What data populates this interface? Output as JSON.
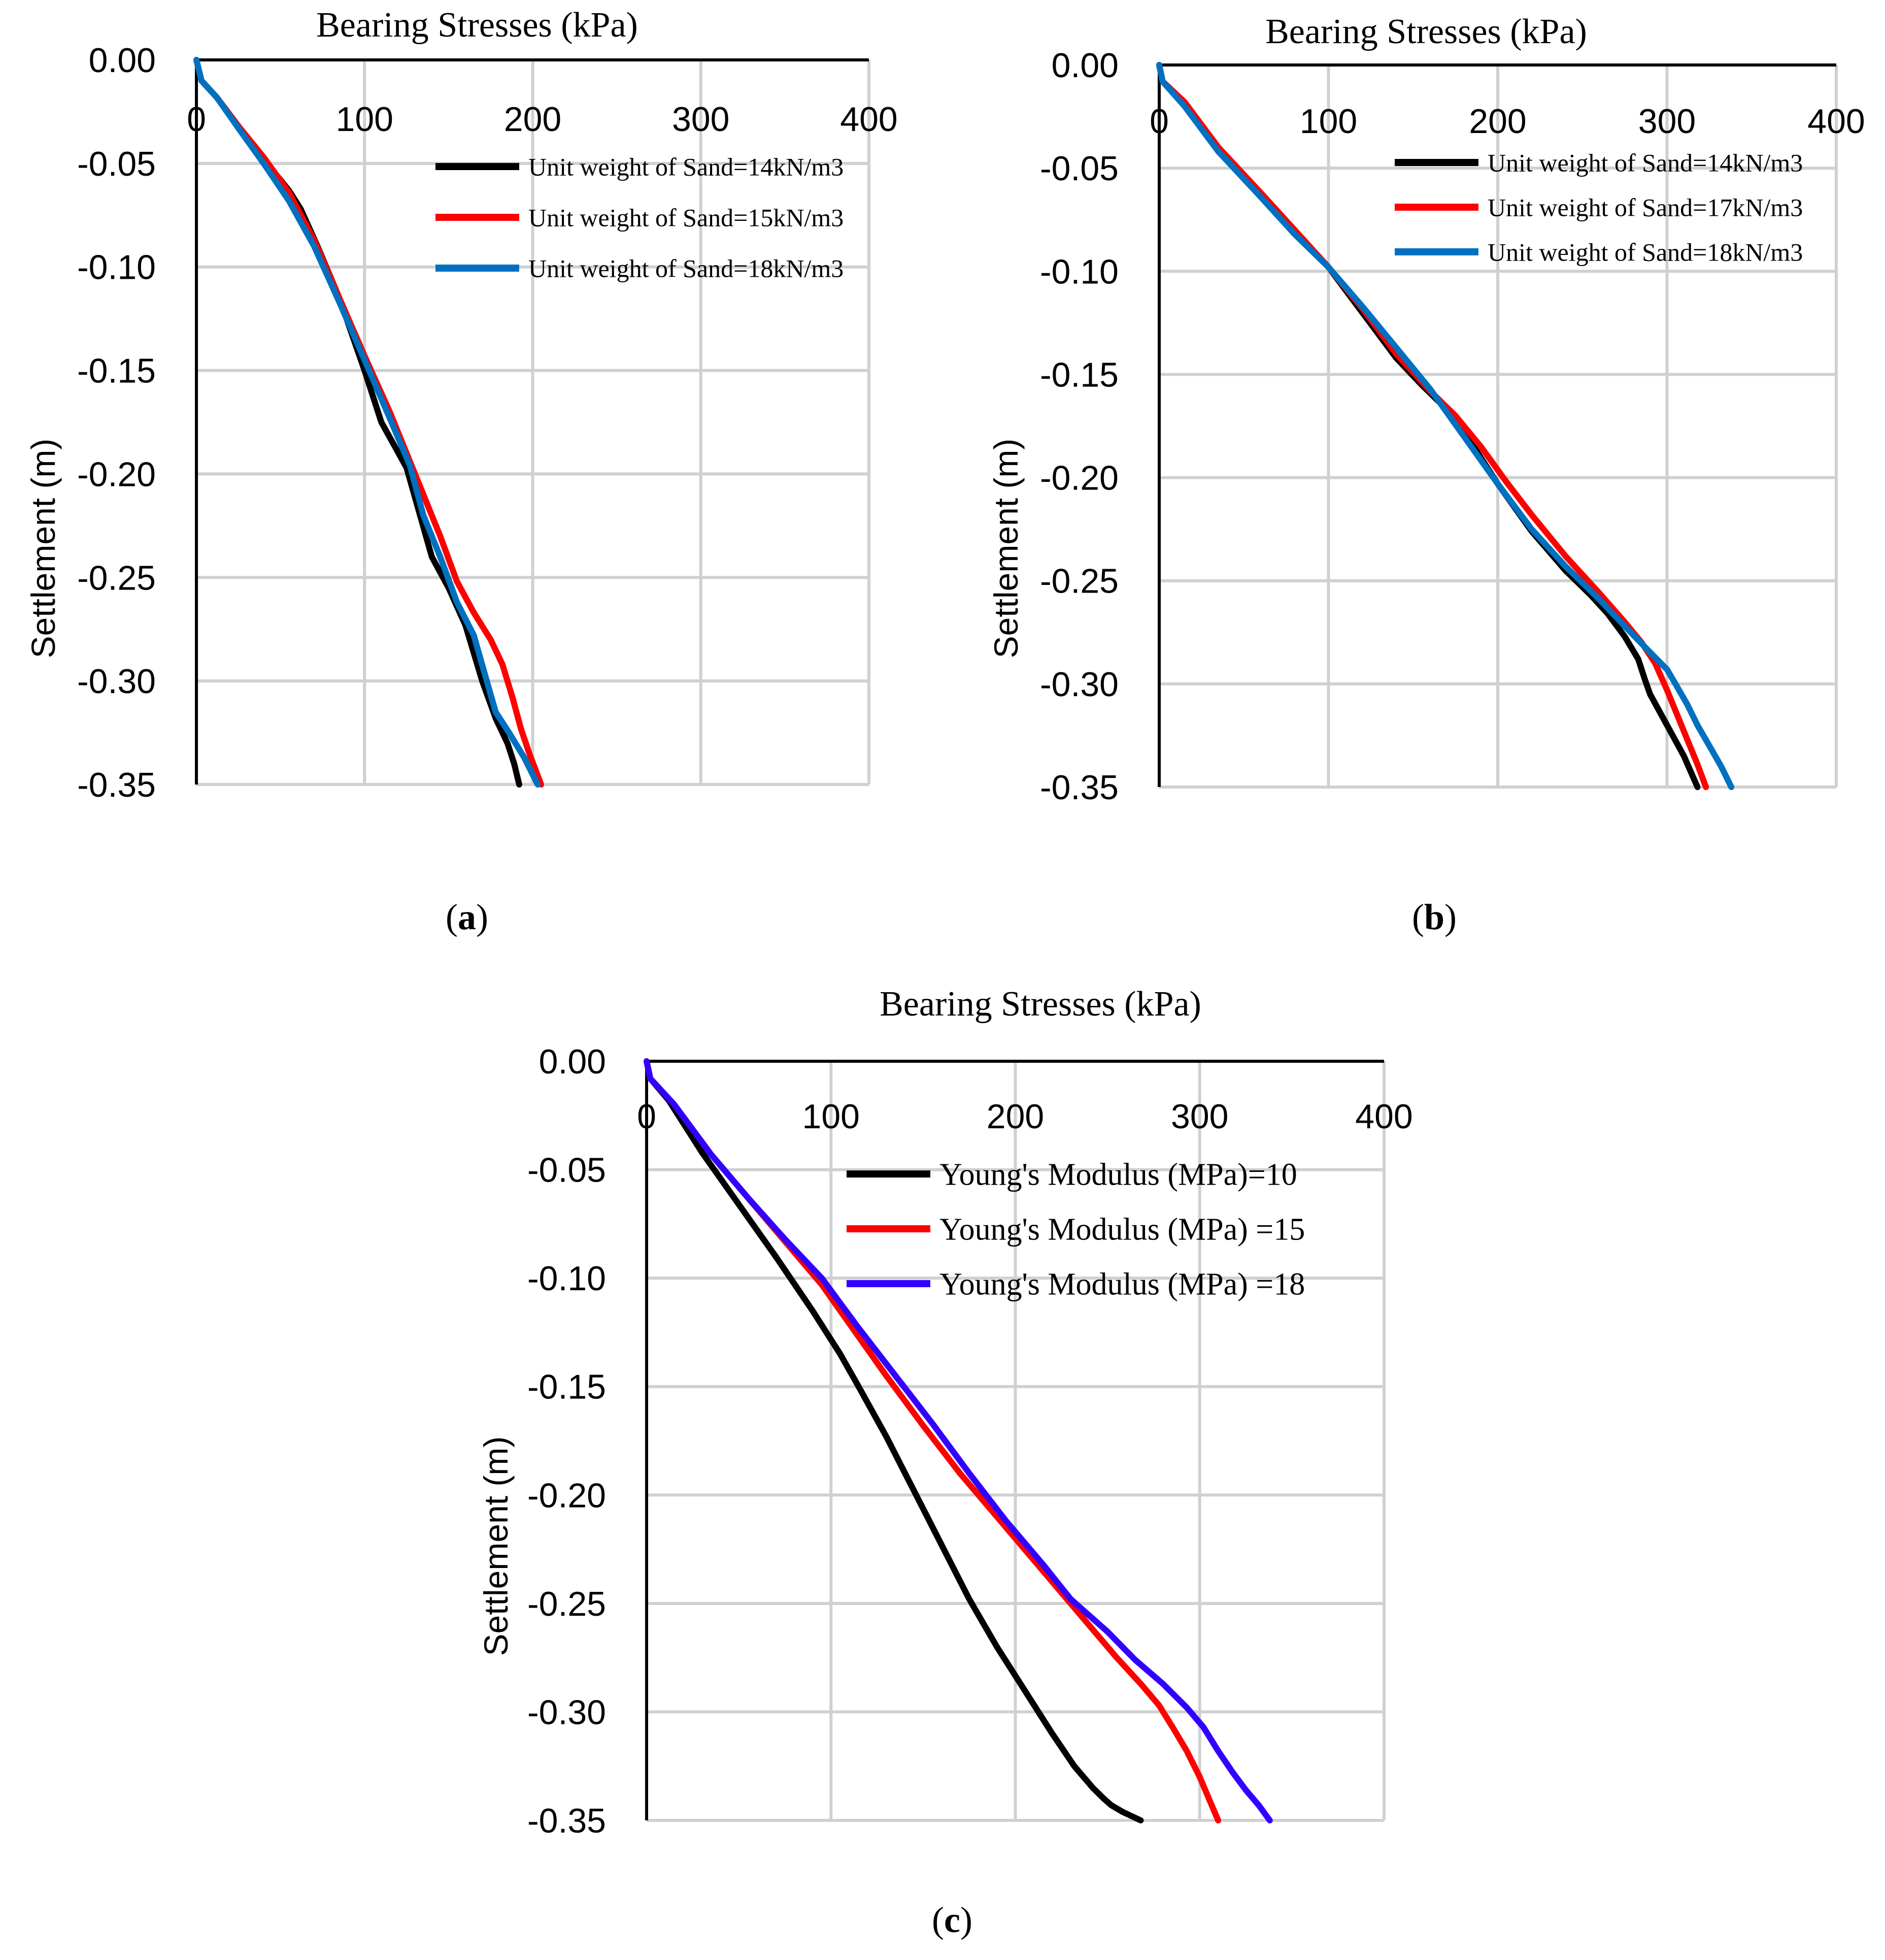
{
  "chart_data": [
    {
      "type": "line",
      "panel_caption": "a",
      "title": "Bearing Stresses (kPa)",
      "xlabel": "Bearing Stresses (kPa)",
      "ylabel": "Settlement (m)",
      "xlim": [
        0,
        400
      ],
      "ylim": [
        -0.35,
        0.0
      ],
      "x_ticks": [
        "0",
        "100",
        "200",
        "300",
        "400"
      ],
      "y_ticks": [
        "0.00",
        "-0.05",
        "-0.10",
        "-0.15",
        "-0.20",
        "-0.25",
        "-0.30",
        "-0.35"
      ],
      "grid": true,
      "legend_position": "top-right",
      "series": [
        {
          "name": "Unit weight of Sand=14kN/m3",
          "color": "#000000",
          "x": [
            0,
            3,
            12,
            25,
            40,
            55,
            62,
            72,
            85,
            100,
            110,
            125,
            140,
            150,
            160,
            170,
            178,
            185,
            189,
            192
          ],
          "y": [
            0.0,
            -0.01,
            -0.018,
            -0.032,
            -0.048,
            -0.063,
            -0.072,
            -0.09,
            -0.115,
            -0.15,
            -0.175,
            -0.197,
            -0.24,
            -0.255,
            -0.273,
            -0.3,
            -0.318,
            -0.33,
            -0.34,
            -0.35
          ]
        },
        {
          "name": "Unit weight of Sand=15kN/m3",
          "color": "#ff0000",
          "x": [
            0,
            3,
            12,
            25,
            40,
            55,
            70,
            85,
            100,
            115,
            130,
            145,
            155,
            165,
            175,
            182,
            188,
            193,
            198,
            205
          ],
          "y": [
            0.0,
            -0.01,
            -0.018,
            -0.032,
            -0.047,
            -0.064,
            -0.087,
            -0.115,
            -0.143,
            -0.17,
            -0.2,
            -0.23,
            -0.252,
            -0.267,
            -0.28,
            -0.292,
            -0.308,
            -0.323,
            -0.335,
            -0.35
          ]
        },
        {
          "name": "Unit weight of Sand=18kN/m3",
          "color": "#0070c0",
          "x": [
            0,
            3,
            12,
            25,
            40,
            55,
            70,
            85,
            100,
            115,
            127,
            135,
            145,
            155,
            165,
            172,
            178,
            186,
            195,
            203
          ],
          "y": [
            0.0,
            -0.01,
            -0.018,
            -0.033,
            -0.05,
            -0.068,
            -0.09,
            -0.117,
            -0.145,
            -0.173,
            -0.196,
            -0.22,
            -0.24,
            -0.262,
            -0.278,
            -0.298,
            -0.315,
            -0.325,
            -0.337,
            -0.35
          ]
        }
      ]
    },
    {
      "type": "line",
      "panel_caption": "b",
      "title": "Bearing Stresses (kPa)",
      "xlabel": "Bearing Stresses (kPa)",
      "ylabel": "Settlement (m)",
      "xlim": [
        0,
        400
      ],
      "ylim": [
        -0.35,
        0.0
      ],
      "x_ticks": [
        "0",
        "100",
        "200",
        "300",
        "400"
      ],
      "y_ticks": [
        "0.00",
        "-0.05",
        "-0.10",
        "-0.15",
        "-0.20",
        "-0.25",
        "-0.30",
        "-0.35"
      ],
      "grid": true,
      "legend_position": "top-right",
      "series": [
        {
          "name": "Unit weight of Sand=14kN/m3",
          "color": "#000000",
          "x": [
            0,
            2,
            15,
            35,
            60,
            80,
            100,
            120,
            140,
            155,
            170,
            185,
            200,
            220,
            240,
            255,
            265,
            275,
            283,
            287,
            290,
            300,
            310,
            318
          ],
          "y": [
            0.0,
            -0.008,
            -0.018,
            -0.04,
            -0.062,
            -0.08,
            -0.098,
            -0.12,
            -0.142,
            -0.155,
            -0.167,
            -0.184,
            -0.203,
            -0.226,
            -0.245,
            -0.257,
            -0.266,
            -0.277,
            -0.288,
            -0.298,
            -0.305,
            -0.32,
            -0.335,
            -0.35
          ]
        },
        {
          "name": "Unit weight of Sand=17kN/m3",
          "color": "#ff0000",
          "x": [
            0,
            2,
            15,
            35,
            60,
            80,
            100,
            120,
            140,
            160,
            175,
            190,
            205,
            220,
            240,
            260,
            275,
            285,
            293,
            300,
            306,
            312,
            318,
            323
          ],
          "y": [
            0.0,
            -0.008,
            -0.018,
            -0.04,
            -0.062,
            -0.08,
            -0.098,
            -0.118,
            -0.14,
            -0.158,
            -0.17,
            -0.185,
            -0.202,
            -0.218,
            -0.238,
            -0.256,
            -0.27,
            -0.28,
            -0.29,
            -0.303,
            -0.315,
            -0.327,
            -0.339,
            -0.35
          ]
        },
        {
          "name": "Unit weight of Sand=18kN/m3",
          "color": "#0070c0",
          "x": [
            0,
            2,
            15,
            35,
            60,
            80,
            100,
            120,
            140,
            160,
            180,
            200,
            220,
            240,
            260,
            275,
            288,
            300,
            305,
            312,
            318,
            325,
            332,
            338
          ],
          "y": [
            0.0,
            -0.008,
            -0.02,
            -0.042,
            -0.064,
            -0.082,
            -0.098,
            -0.117,
            -0.137,
            -0.157,
            -0.18,
            -0.203,
            -0.225,
            -0.243,
            -0.259,
            -0.272,
            -0.283,
            -0.293,
            -0.3,
            -0.31,
            -0.32,
            -0.33,
            -0.34,
            -0.35
          ]
        }
      ]
    },
    {
      "type": "line",
      "panel_caption": "c",
      "title": "Bearing Stresses (kPa)",
      "xlabel": "Bearing Stresses (kPa)",
      "ylabel": "Settlement (m)",
      "xlim": [
        0,
        400
      ],
      "ylim": [
        -0.35,
        0.0
      ],
      "x_ticks": [
        "0",
        "100",
        "200",
        "300",
        "400"
      ],
      "y_ticks": [
        "0.00",
        "-0.05",
        "-0.10",
        "-0.15",
        "-0.20",
        "-0.25",
        "-0.30",
        "-0.35"
      ],
      "grid": true,
      "legend_position": "top-right",
      "series": [
        {
          "name": "Young's Modulus (MPa)=10",
          "color": "#000000",
          "x": [
            0,
            2,
            12,
            30,
            50,
            70,
            90,
            105,
            115,
            130,
            145,
            160,
            175,
            190,
            205,
            220,
            232,
            242,
            248,
            252,
            258,
            263,
            268
          ],
          "y": [
            0.0,
            -0.008,
            -0.018,
            -0.042,
            -0.066,
            -0.09,
            -0.115,
            -0.135,
            -0.15,
            -0.173,
            -0.198,
            -0.223,
            -0.248,
            -0.27,
            -0.29,
            -0.31,
            -0.325,
            -0.335,
            -0.34,
            -0.343,
            -0.346,
            -0.348,
            -0.35
          ]
        },
        {
          "name": "Young's Modulus (MPa) =15",
          "color": "#ff0000",
          "x": [
            0,
            2,
            15,
            35,
            55,
            75,
            95,
            115,
            130,
            150,
            170,
            190,
            210,
            225,
            240,
            255,
            268,
            278,
            286,
            293,
            300,
            305,
            310
          ],
          "y": [
            0.0,
            -0.008,
            -0.02,
            -0.043,
            -0.063,
            -0.083,
            -0.103,
            -0.127,
            -0.145,
            -0.168,
            -0.19,
            -0.21,
            -0.23,
            -0.245,
            -0.26,
            -0.275,
            -0.287,
            -0.297,
            -0.308,
            -0.318,
            -0.33,
            -0.34,
            -0.35
          ]
        },
        {
          "name": "Young's Modulus (MPa) =18",
          "color": "#3300ff",
          "x": [
            0,
            2,
            15,
            35,
            55,
            75,
            95,
            115,
            135,
            155,
            175,
            195,
            215,
            230,
            250,
            265,
            280,
            293,
            302,
            310,
            318,
            325,
            332,
            338
          ],
          "y": [
            0.0,
            -0.008,
            -0.02,
            -0.043,
            -0.063,
            -0.082,
            -0.1,
            -0.123,
            -0.145,
            -0.167,
            -0.19,
            -0.212,
            -0.232,
            -0.248,
            -0.263,
            -0.276,
            -0.287,
            -0.298,
            -0.307,
            -0.318,
            -0.328,
            -0.336,
            -0.343,
            -0.35
          ]
        }
      ]
    }
  ]
}
